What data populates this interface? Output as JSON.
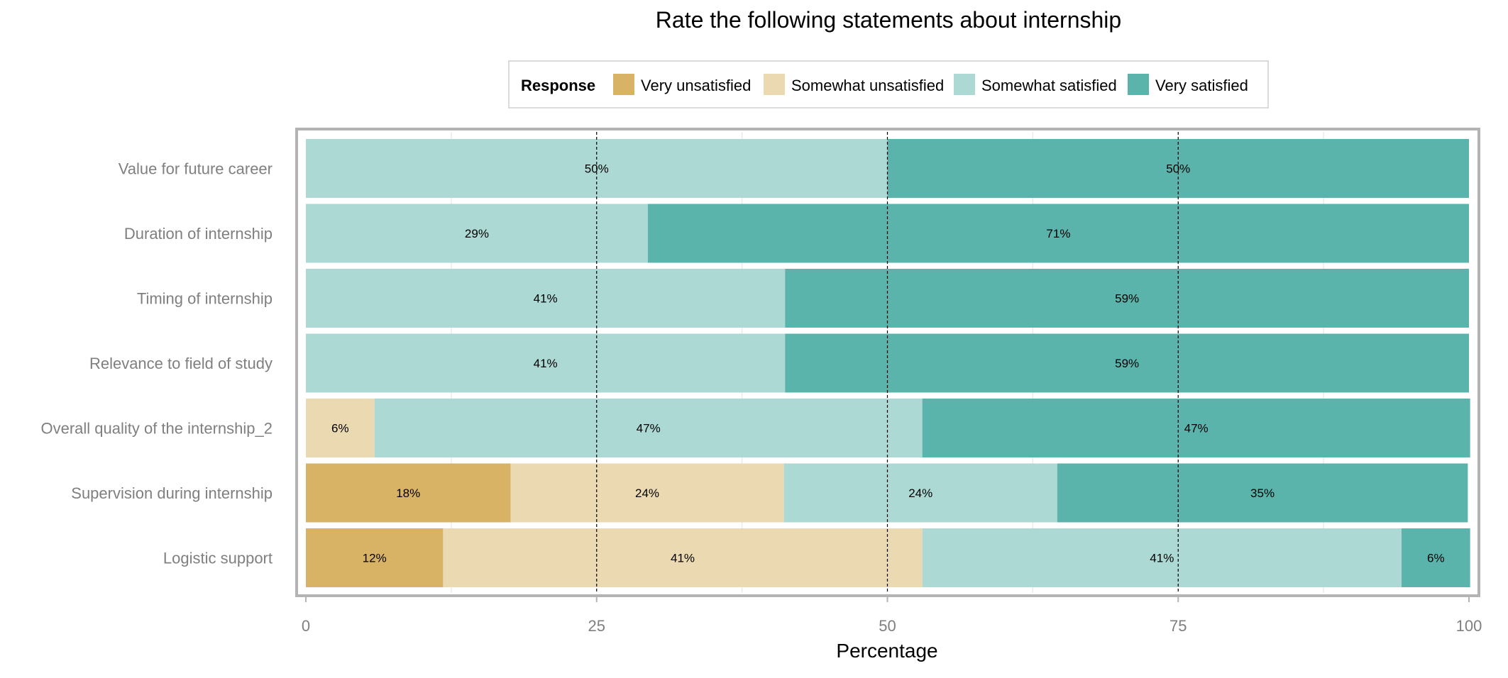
{
  "chart_data": {
    "type": "bar",
    "orientation": "horizontal",
    "stacked": true,
    "title": "Rate the following statements about internship",
    "xlabel": "Percentage",
    "ylabel": "",
    "xlim": [
      0,
      100
    ],
    "x_ticks": [
      0,
      25,
      50,
      75,
      100
    ],
    "x_tick_labels": [
      "0",
      "25",
      "50",
      "75",
      "100"
    ],
    "reference_lines": [
      25,
      50,
      75
    ],
    "grid": true,
    "legend": {
      "title": "Response",
      "position": "top",
      "entries": [
        "Very unsatisfied",
        "Somewhat unsatisfied",
        "Somewhat satisfied",
        "Very satisfied"
      ]
    },
    "categories": [
      "Value for future career",
      "Duration of internship",
      "Timing of internship",
      "Relevance to field of study",
      "Overall quality of the internship_2",
      "Supervision during internship",
      "Logistic support"
    ],
    "series": [
      {
        "name": "Very unsatisfied",
        "color": "#d8b365",
        "values": [
          0,
          0,
          0,
          0,
          0,
          17.6,
          11.8
        ],
        "labels": [
          "",
          "",
          "",
          "",
          "",
          "18%",
          "12%"
        ]
      },
      {
        "name": "Somewhat unsatisfied",
        "color": "#ebd9b2",
        "values": [
          0,
          0,
          0,
          0,
          5.9,
          23.5,
          41.2
        ],
        "labels": [
          "",
          "",
          "",
          "",
          "6%",
          "24%",
          "41%"
        ]
      },
      {
        "name": "Somewhat satisfied",
        "color": "#acd9d4",
        "values": [
          50,
          29.4,
          41.2,
          41.2,
          47.1,
          23.5,
          41.2
        ],
        "labels": [
          "50%",
          "29%",
          "41%",
          "41%",
          "47%",
          "24%",
          "41%"
        ]
      },
      {
        "name": "Very satisfied",
        "color": "#5ab4ac",
        "values": [
          50,
          70.6,
          58.8,
          58.8,
          47.1,
          35.3,
          5.9
        ],
        "labels": [
          "50%",
          "71%",
          "59%",
          "59%",
          "47%",
          "35%",
          "6%"
        ]
      }
    ]
  }
}
